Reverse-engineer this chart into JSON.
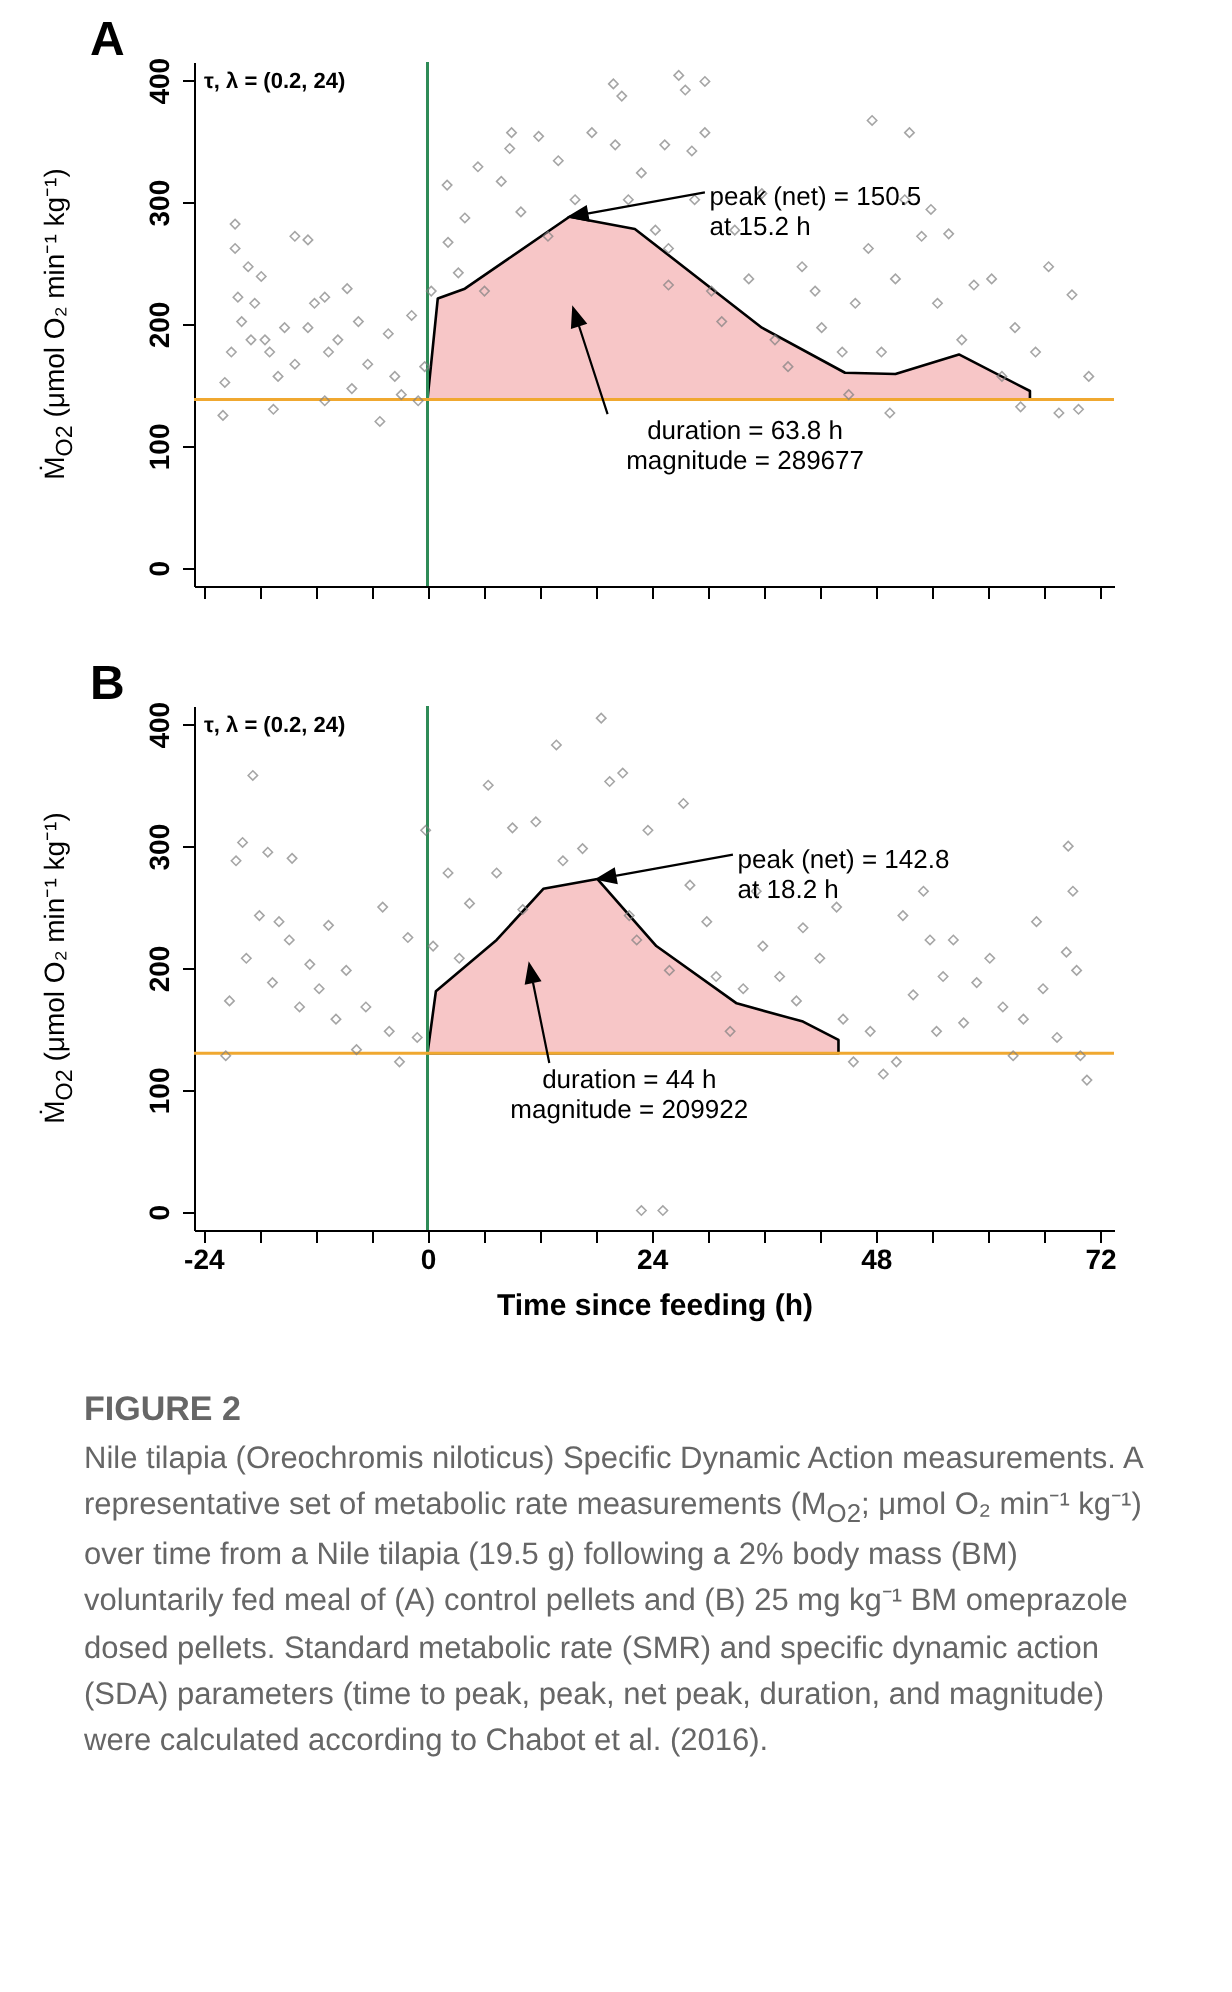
{
  "chart_data": [
    {
      "type": "scatter",
      "title": "A",
      "ylabel": "Ṁ$_{O2}$ (μmol O₂ min⁻¹ kg⁻¹)",
      "xlim": [
        -25,
        73.5
      ],
      "ylim": [
        -15,
        415
      ],
      "xticks": [
        -24,
        {
          "value": -18,
          "label": null
        },
        {
          "value": -12,
          "label": null
        },
        {
          "value": -6,
          "label": null
        },
        0,
        {
          "value": 6,
          "label": null
        },
        {
          "value": 12,
          "label": null
        },
        {
          "value": 18,
          "label": null
        },
        24,
        {
          "value": 30,
          "label": null
        },
        {
          "value": 36,
          "label": null
        },
        {
          "value": 42,
          "label": null
        },
        48,
        {
          "value": 54,
          "label": null
        },
        {
          "value": 60,
          "label": null
        },
        {
          "value": 66,
          "label": null
        },
        72
      ],
      "yticks": [
        0,
        100,
        200,
        300,
        400
      ],
      "tick_labels": "y",
      "series": [
        {
          "color": "#808080",
          "marker": "diamond",
          "x": [
            -21.9,
            -21.7,
            -21,
            -20.6,
            -20.6,
            -20.3,
            -19.9,
            -19.2,
            -18.9,
            -18.5,
            -17.8,
            -17.4,
            -16.9,
            -16.5,
            -16,
            -15.3,
            -14.2,
            -14.2,
            -12.8,
            -12.8,
            -12.1,
            -11,
            -11,
            -10.6,
            -9.6,
            -8.6,
            -8.1,
            -7.4,
            -6.4,
            -5.1,
            -4.2,
            -3.5,
            -2.8,
            -1.7,
            -1,
            -0.3,
            0.4,
            2.1,
            2.2,
            3.3,
            4,
            5.4,
            6.1,
            7.9,
            8.8,
            9,
            10,
            11.9,
            12.9,
            14,
            15.8,
            17.6,
            19.9,
            20.1,
            20.8,
            21.5,
            22.9,
            24.4,
            25.4,
            25.8,
            25.8,
            26.9,
            27.6,
            28.3,
            28.6,
            29.7,
            29.7,
            30.4,
            31.5,
            32.9,
            34.4,
            35.8,
            37.2,
            38.6,
            40.1,
            41.5,
            42.2,
            44.4,
            45.1,
            45.8,
            47.6,
            47.2,
            48.6,
            49.5,
            50.1,
            51.1,
            51.6,
            52.9,
            53.9,
            54.6,
            55.8,
            57.2,
            58.5,
            60.4,
            61.5,
            62.9,
            63.5,
            65.1,
            66.5,
            67.6,
            69,
            69.7,
            70.8
          ],
          "values": [
            125,
            152,
            177,
            282,
            262,
            222,
            202,
            247,
            187,
            217,
            239,
            187,
            177,
            130,
            157,
            197,
            272,
            167,
            269,
            197,
            217,
            137,
            222,
            177,
            187,
            229,
            147,
            202,
            167,
            120,
            192,
            157,
            142,
            207,
            137,
            165,
            227,
            314,
            267,
            242,
            287,
            329,
            227,
            317,
            344,
            357,
            292,
            354,
            272,
            334,
            302,
            357,
            397,
            347,
            387,
            302,
            324,
            277,
            347,
            262,
            232,
            404,
            392,
            342,
            302,
            399,
            357,
            227,
            202,
            277,
            237,
            307,
            187,
            165,
            247,
            227,
            197,
            177,
            142,
            217,
            367,
            262,
            177,
            127,
            237,
            302,
            357,
            272,
            294,
            217,
            274,
            187,
            232,
            237,
            157,
            197,
            132,
            177,
            247,
            127,
            224,
            130,
            157
          ]
        },
        {
          "type": "area",
          "color": "#f7c6c7",
          "x": [
            0,
            1.1,
            4,
            15.2,
            22.2,
            35.8,
            44.7,
            50.1,
            56.9,
            64.5
          ],
          "values": [
            138,
            221,
            229,
            288,
            278,
            197,
            160,
            159,
            175,
            145
          ]
        }
      ],
      "ref_lines": [
        {
          "axis": "x",
          "value": 0,
          "color": "#2e8b57"
        },
        {
          "axis": "y",
          "value": 138,
          "color": "#f0a830"
        }
      ],
      "annotations": [
        "τ, λ = (0.2, 24)",
        {
          "text": "peak (net) = 150.5\nat 15.2 h",
          "x": 15.2,
          "y": 288
        },
        "duration = 63.8 h\nmagnitude = 289677"
      ]
    },
    {
      "type": "scatter",
      "title": "B",
      "xlabel": "Time since feeding (h)",
      "ylabel": "Ṁ$_{O2}$ (μmol O₂ min⁻¹ kg⁻¹)",
      "xlim": [
        -25,
        73.5
      ],
      "ylim": [
        -15,
        415
      ],
      "xticks": [
        -24,
        {
          "value": -18,
          "label": null
        },
        {
          "value": -12,
          "label": null
        },
        {
          "value": -6,
          "label": null
        },
        0,
        {
          "value": 6,
          "label": null
        },
        {
          "value": 12,
          "label": null
        },
        {
          "value": 18,
          "label": null
        },
        24,
        {
          "value": 30,
          "label": null
        },
        {
          "value": 36,
          "label": null
        },
        {
          "value": 42,
          "label": null
        },
        48,
        {
          "value": 54,
          "label": null
        },
        {
          "value": 60,
          "label": null
        },
        {
          "value": 66,
          "label": null
        },
        72
      ],
      "yticks": [
        0,
        100,
        200,
        300,
        400
      ],
      "series": [
        {
          "color": "#808080",
          "marker": "diamond",
          "x": [
            -21.6,
            -21.2,
            -20.5,
            -19.8,
            -19.4,
            -18.7,
            -18,
            -17.1,
            -16.6,
            -15.9,
            -14.8,
            -14.5,
            -13.7,
            -12.6,
            -11.6,
            -10.6,
            -9.8,
            -8.7,
            -7.6,
            -6.6,
            -4.8,
            -4.1,
            -3,
            -2.1,
            -1.1,
            -0.2,
            0.6,
            2.2,
            3.4,
            4.5,
            6.5,
            7.4,
            9.1,
            10.2,
            11.6,
            13.8,
            14.5,
            16.6,
            18.6,
            19.5,
            20.9,
            21.6,
            22.4,
            22.9,
            23.6,
            25.2,
            25.9,
            27.4,
            28.1,
            29.9,
            30.9,
            32.4,
            33.8,
            35.2,
            35.9,
            37.7,
            39.5,
            40.2,
            42,
            43.8,
            44.5,
            45.6,
            47.4,
            48.8,
            50.2,
            50.9,
            52,
            53.1,
            53.8,
            54.5,
            55.2,
            56.3,
            57.4,
            58.8,
            60.2,
            61.6,
            62.7,
            63.8,
            65.2,
            65.9,
            67.4,
            68.4,
            68.6,
            69.1,
            69.9,
            70.6,
            69.5
          ],
          "values": [
            128,
            173,
            288,
            303,
            208,
            358,
            243,
            295,
            188,
            238,
            223,
            290,
            168,
            203,
            183,
            235,
            158,
            198,
            133,
            168,
            250,
            148,
            123,
            225,
            143,
            313,
            218,
            278,
            208,
            253,
            350,
            278,
            315,
            248,
            320,
            383,
            288,
            298,
            405,
            353,
            360,
            243,
            223,
            1,
            313,
            1,
            198,
            335,
            268,
            238,
            193,
            148,
            183,
            263,
            218,
            193,
            173,
            233,
            208,
            250,
            158,
            123,
            148,
            113,
            123,
            243,
            178,
            263,
            223,
            148,
            193,
            223,
            155,
            188,
            208,
            168,
            128,
            158,
            238,
            183,
            143,
            213,
            300,
            263,
            128,
            108,
            198
          ]
        },
        {
          "type": "area",
          "color": "#f7c6c7",
          "x": [
            0,
            0.9,
            7.4,
            12.4,
            18.2,
            24.5,
            33.1,
            40.2,
            44
          ],
          "values": [
            130,
            181,
            223,
            265,
            273,
            218,
            171,
            156,
            141
          ]
        }
      ],
      "ref_lines": [
        {
          "axis": "x",
          "value": 0,
          "color": "#2e8b57"
        },
        {
          "axis": "y",
          "value": 130,
          "color": "#f0a830"
        }
      ],
      "annotations": [
        "τ, λ = (0.2, 24)",
        {
          "text": "peak (net) = 142.8\nat 18.2 h",
          "x": 18.2,
          "y": 273
        },
        "duration = 44 h\nmagnitude = 209922",
        "FIGURE 2",
        "Nile tilapia (Oreochromis niloticus) Specific Dynamic Action measurements. A representative set of metabolic rate measurements (M$_{O2}$; μmol O₂ min⁻¹ kg⁻¹) over time from a Nile tilapia (19.5 g) following a 2% body mass (BM) voluntarily fed meal of (A) control pellets and (B) 25 mg kg⁻¹ BM omeprazole dosed pellets. Standard metabolic rate (SMR) and specific dynamic action (SDA) parameters (time to peak, peak, net peak, duration, and magnitude) were calculated according to Chabot et al. (2016)."
      ]
    }
  ]
}
